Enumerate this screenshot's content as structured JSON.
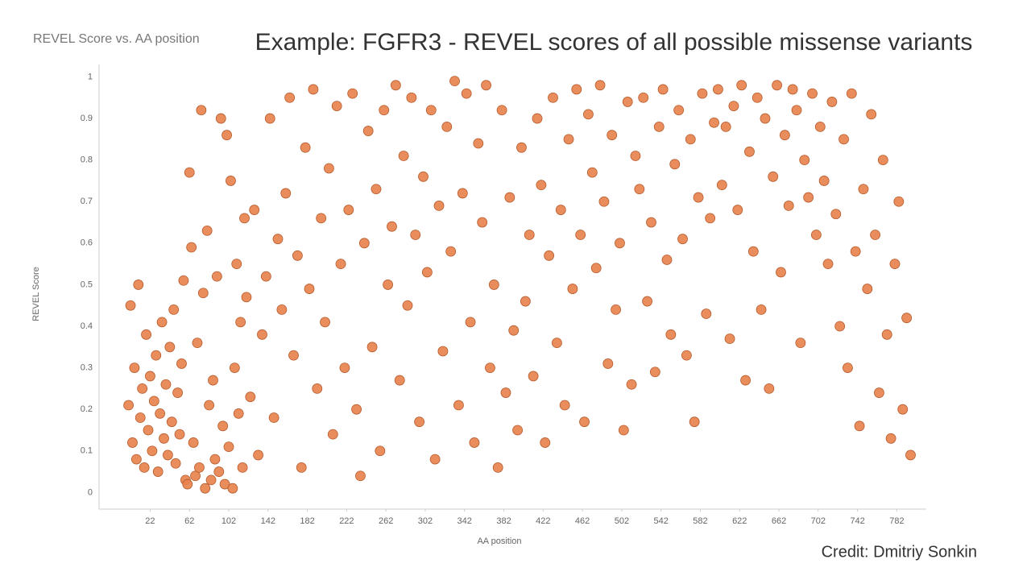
{
  "slide": {
    "title": "Example: FGFR3 - REVEL scores of all possible missense variants",
    "credit": "Credit: Dmitriy Sonkin"
  },
  "chart_data": {
    "type": "scatter",
    "title": "REVEL Score vs. AA position",
    "x_label": "AA position",
    "y_label": "REVEL Score",
    "color": "#e8834f",
    "grid": false,
    "xlim": [
      -30,
      812
    ],
    "ylim": [
      -0.04,
      1.03
    ],
    "xticks": [
      22,
      62,
      102,
      142,
      182,
      222,
      262,
      302,
      342,
      382,
      422,
      462,
      502,
      542,
      582,
      622,
      662,
      702,
      742,
      782
    ],
    "yticks": [
      0,
      0.1,
      0.2,
      0.3,
      0.4,
      0.5,
      0.6,
      0.7,
      0.8,
      0.9,
      1
    ],
    "x": [
      0,
      2,
      4,
      6,
      8,
      10,
      12,
      14,
      16,
      18,
      20,
      22,
      24,
      26,
      28,
      30,
      32,
      34,
      36,
      38,
      40,
      42,
      44,
      46,
      48,
      50,
      52,
      54,
      56,
      58,
      60,
      62,
      64,
      66,
      68,
      70,
      72,
      74,
      76,
      78,
      80,
      82,
      84,
      86,
      88,
      90,
      92,
      94,
      96,
      98,
      100,
      102,
      104,
      106,
      108,
      110,
      112,
      114,
      116,
      118,
      120,
      124,
      128,
      132,
      136,
      140,
      144,
      148,
      152,
      156,
      160,
      164,
      168,
      172,
      176,
      180,
      184,
      188,
      192,
      196,
      200,
      204,
      208,
      212,
      216,
      220,
      224,
      228,
      232,
      236,
      240,
      244,
      248,
      252,
      256,
      260,
      264,
      268,
      272,
      276,
      280,
      284,
      288,
      292,
      296,
      300,
      304,
      308,
      312,
      316,
      320,
      324,
      328,
      332,
      336,
      340,
      344,
      348,
      352,
      356,
      360,
      364,
      368,
      372,
      376,
      380,
      384,
      388,
      392,
      396,
      400,
      404,
      408,
      412,
      416,
      420,
      424,
      428,
      432,
      436,
      440,
      444,
      448,
      452,
      456,
      460,
      464,
      468,
      472,
      476,
      480,
      484,
      488,
      492,
      496,
      500,
      504,
      508,
      512,
      516,
      520,
      524,
      528,
      532,
      536,
      540,
      544,
      548,
      552,
      556,
      560,
      564,
      568,
      572,
      576,
      580,
      584,
      588,
      592,
      596,
      600,
      604,
      608,
      612,
      616,
      620,
      624,
      628,
      632,
      636,
      640,
      644,
      648,
      652,
      656,
      660,
      664,
      668,
      672,
      676,
      680,
      684,
      688,
      692,
      696,
      700,
      704,
      708,
      712,
      716,
      720,
      724,
      728,
      732,
      736,
      740,
      744,
      748,
      752,
      756,
      760,
      764,
      768,
      772,
      776,
      780,
      784,
      788,
      792,
      796
    ],
    "values": [
      0.21,
      0.45,
      0.12,
      0.3,
      0.08,
      0.5,
      0.18,
      0.25,
      0.06,
      0.38,
      0.15,
      0.28,
      0.1,
      0.22,
      0.33,
      0.05,
      0.19,
      0.41,
      0.13,
      0.26,
      0.09,
      0.35,
      0.17,
      0.44,
      0.07,
      0.24,
      0.14,
      0.31,
      0.51,
      0.03,
      0.02,
      0.77,
      0.59,
      0.12,
      0.04,
      0.36,
      0.06,
      0.92,
      0.48,
      0.01,
      0.63,
      0.21,
      0.03,
      0.27,
      0.08,
      0.52,
      0.05,
      0.9,
      0.16,
      0.02,
      0.86,
      0.11,
      0.75,
      0.01,
      0.3,
      0.55,
      0.19,
      0.41,
      0.06,
      0.66,
      0.47,
      0.23,
      0.68,
      0.09,
      0.38,
      0.52,
      0.9,
      0.18,
      0.61,
      0.44,
      0.72,
      0.95,
      0.33,
      0.57,
      0.06,
      0.83,
      0.49,
      0.97,
      0.25,
      0.66,
      0.41,
      0.78,
      0.14,
      0.93,
      0.55,
      0.3,
      0.68,
      0.96,
      0.2,
      0.04,
      0.6,
      0.87,
      0.35,
      0.73,
      0.1,
      0.92,
      0.5,
      0.64,
      0.98,
      0.27,
      0.81,
      0.45,
      0.95,
      0.62,
      0.17,
      0.76,
      0.53,
      0.92,
      0.08,
      0.69,
      0.34,
      0.88,
      0.58,
      0.99,
      0.21,
      0.72,
      0.96,
      0.41,
      0.12,
      0.84,
      0.65,
      0.98,
      0.3,
      0.5,
      0.06,
      0.92,
      0.24,
      0.71,
      0.39,
      0.15,
      0.83,
      0.46,
      0.62,
      0.28,
      0.9,
      0.74,
      0.12,
      0.57,
      0.95,
      0.36,
      0.68,
      0.21,
      0.85,
      0.49,
      0.97,
      0.62,
      0.17,
      0.91,
      0.77,
      0.54,
      0.98,
      0.7,
      0.31,
      0.86,
      0.44,
      0.6,
      0.15,
      0.94,
      0.26,
      0.81,
      0.73,
      0.95,
      0.46,
      0.65,
      0.29,
      0.88,
      0.97,
      0.56,
      0.38,
      0.79,
      0.92,
      0.61,
      0.33,
      0.85,
      0.17,
      0.71,
      0.96,
      0.43,
      0.66,
      0.89,
      0.97,
      0.74,
      0.88,
      0.37,
      0.93,
      0.68,
      0.98,
      0.27,
      0.82,
      0.58,
      0.95,
      0.44,
      0.9,
      0.25,
      0.76,
      0.98,
      0.53,
      0.86,
      0.69,
      0.97,
      0.92,
      0.36,
      0.8,
      0.71,
      0.96,
      0.62,
      0.88,
      0.75,
      0.55,
      0.94,
      0.67,
      0.4,
      0.85,
      0.3,
      0.96,
      0.58,
      0.16,
      0.73,
      0.49,
      0.91,
      0.62,
      0.24,
      0.8,
      0.38,
      0.13,
      0.55,
      0.7,
      0.2,
      0.42,
      0.09
    ]
  }
}
